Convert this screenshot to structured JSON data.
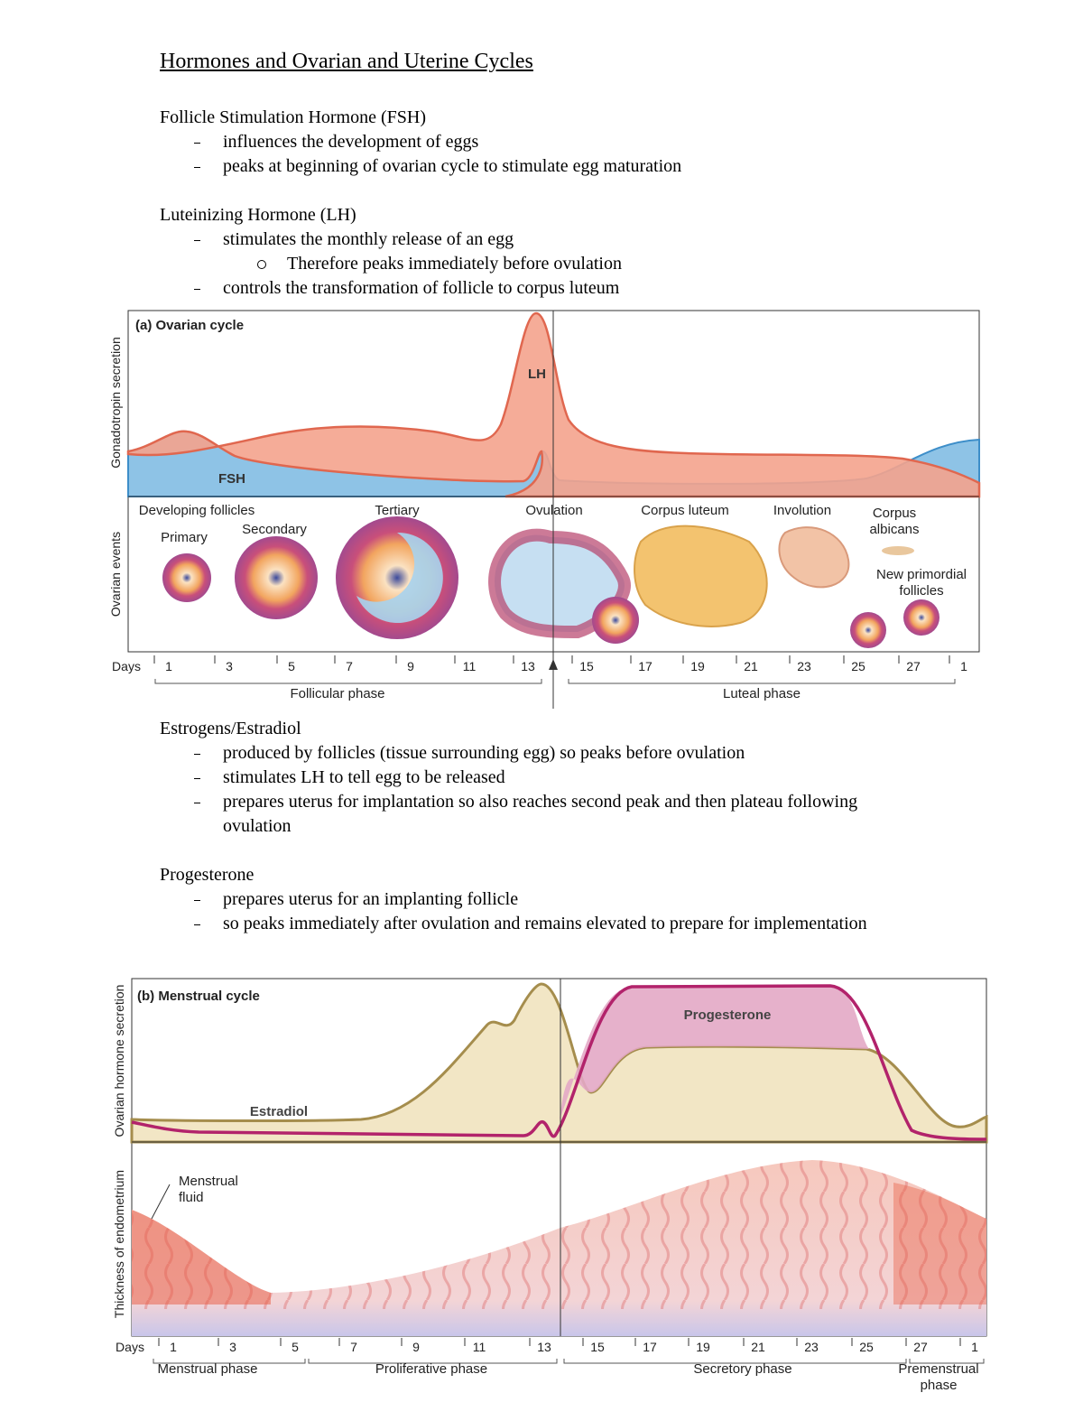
{
  "title": "Hormones and Ovarian and Uterine Cycles",
  "sections": [
    {
      "heading": "Follicle Stimulation Hormone (FSH)",
      "items": [
        {
          "text": "influences the development of eggs"
        },
        {
          "text": "peaks at beginning of ovarian cycle to stimulate egg maturation"
        }
      ]
    },
    {
      "heading": "Luteinizing Hormone (LH)",
      "items": [
        {
          "text": "stimulates the monthly release of an egg",
          "sub": [
            "Therefore peaks immediately before ovulation"
          ]
        },
        {
          "text": "controls the transformation of follicle to corpus luteum"
        }
      ]
    },
    {
      "heading": "Estrogens/Estradiol",
      "items": [
        {
          "text": "produced by follicles (tissue surrounding egg) so peaks before ovulation"
        },
        {
          "text": "stimulates LH to tell egg to be released"
        },
        {
          "text": "prepares uterus for implantation so also reaches second peak and then plateau following ovulation"
        }
      ]
    },
    {
      "heading": "Progesterone",
      "items": [
        {
          "text": "prepares uterus for an implanting follicle"
        },
        {
          "text": "so peaks immediately after ovulation and remains elevated to prepare for implementation"
        }
      ]
    }
  ],
  "figure_a": {
    "panel_title": "(a) Ovarian cycle",
    "y_label_top": "Gonadotropin secretion",
    "y_label_bottom": "Ovarian events",
    "labels": {
      "lh": "LH",
      "fsh": "FSH",
      "developing": "Developing follicles",
      "primary": "Primary",
      "secondary": "Secondary",
      "tertiary": "Tertiary",
      "ovulation": "Ovulation",
      "corpus_luteum": "Corpus luteum",
      "involution": "Involution",
      "corpus_albicans": "Corpus\nalbicans",
      "new_primordial": "New primordial\nfollicles"
    },
    "days_label": "Days",
    "day_ticks": [
      "1",
      "3",
      "5",
      "7",
      "9",
      "11",
      "13",
      "15",
      "17",
      "19",
      "21",
      "23",
      "25",
      "27",
      "1"
    ],
    "phases": [
      "Follicular phase",
      "Luteal phase"
    ]
  },
  "figure_b": {
    "panel_title": "(b) Menstrual cycle",
    "y_label_top": "Ovarian hormone secretion",
    "y_label_bottom": "Thickness of endometrium",
    "labels": {
      "progesterone": "Progesterone",
      "estradiol": "Estradiol",
      "menstrual_fluid": "Menstrual\nfluid"
    },
    "days_label": "Days",
    "day_ticks": [
      "1",
      "3",
      "5",
      "7",
      "9",
      "11",
      "13",
      "15",
      "17",
      "19",
      "21",
      "23",
      "25",
      "27",
      "1"
    ],
    "phases": [
      "Menstrual phase",
      "Proliferative phase",
      "Secretory phase",
      "Premenstrual\nphase"
    ]
  }
}
